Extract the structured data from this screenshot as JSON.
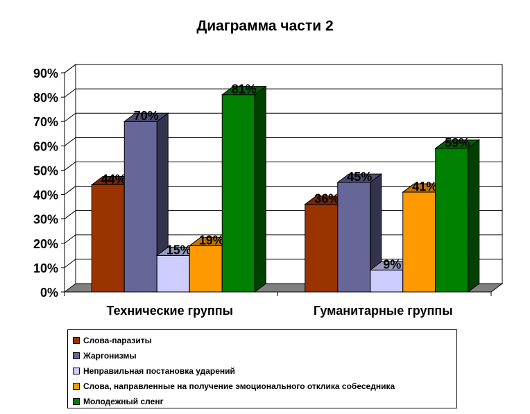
{
  "chart_data": {
    "type": "bar",
    "title": "Диаграмма части 2",
    "categories": [
      "Технические группы",
      "Гуманитарные группы"
    ],
    "y_ticks": [
      "0%",
      "10%",
      "20%",
      "30%",
      "40%",
      "50%",
      "60%",
      "70%",
      "80%",
      "90%"
    ],
    "ylim": [
      0,
      90
    ],
    "y_unit": "%",
    "grid": true,
    "legend_position": "bottom",
    "series": [
      {
        "name": "Слова-паразиты",
        "color": "#993300",
        "values": [
          44,
          36
        ],
        "labels": [
          "44%",
          "36%"
        ]
      },
      {
        "name": "Жаргонизмы",
        "color": "#666699",
        "values": [
          70,
          45
        ],
        "labels": [
          "70%",
          "45%"
        ]
      },
      {
        "name": "Неправильная постановка ударений",
        "color": "#CCCCFF",
        "values": [
          15,
          9
        ],
        "labels": [
          "15%",
          "9%"
        ]
      },
      {
        "name": "Слова, направленные на получение эмоционального отклика собеседника",
        "color": "#FF9900",
        "values": [
          19,
          41
        ],
        "labels": [
          "19%",
          "41%"
        ]
      },
      {
        "name": "Молодежный сленг",
        "color": "#008000",
        "values": [
          81,
          59
        ],
        "labels": [
          "81%",
          "59%"
        ]
      }
    ]
  }
}
